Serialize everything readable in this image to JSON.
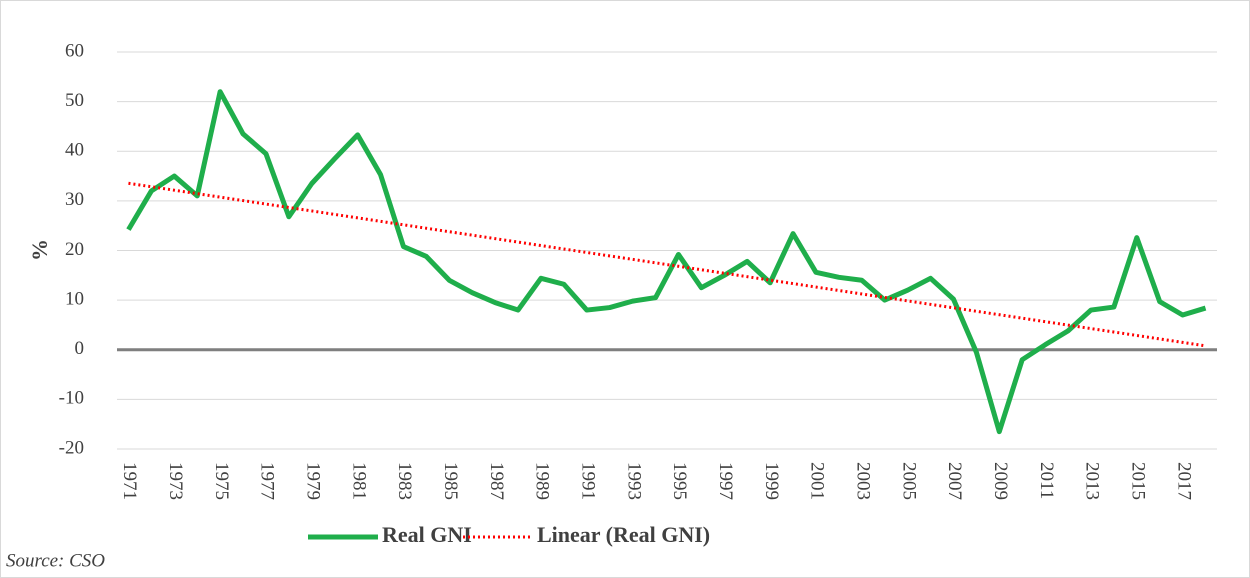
{
  "chart_data": {
    "type": "line",
    "y_label": "%",
    "source": "Source: CSO",
    "categories": [
      "1971",
      null,
      "1973",
      null,
      "1975",
      null,
      "1977",
      null,
      "1979",
      null,
      "1981",
      null,
      "1983",
      null,
      "1985",
      null,
      "1987",
      null,
      "1989",
      null,
      "1991",
      null,
      "1993",
      null,
      "1995",
      null,
      "1997",
      null,
      "1999",
      null,
      "2001",
      null,
      "2003",
      null,
      "2005",
      null,
      "2007",
      null,
      "2009",
      null,
      "2011",
      null,
      "2013",
      null,
      "2015",
      null,
      "2017",
      null
    ],
    "series": [
      {
        "name": "Real GNI",
        "color": "#1fae4b",
        "values": [
          24.2,
          32,
          35,
          31,
          52,
          43.5,
          39.5,
          26.8,
          33.5,
          38.5,
          43.3,
          35.3,
          20.8,
          18.8,
          14,
          11.5,
          9.5,
          8,
          14.4,
          13.2,
          8,
          8.5,
          9.8,
          10.5,
          19.2,
          12.5,
          15,
          17.8,
          13.5,
          23.4,
          15.6,
          14.6,
          14,
          10,
          12,
          14.4,
          10.2,
          -0.5,
          -16.5,
          -2,
          1,
          3.8,
          8,
          8.6,
          22.6,
          9.7,
          7,
          8.4
        ]
      },
      {
        "name": "Linear (Real GNI)",
        "color": "#ff0000",
        "type": "linear-trend"
      }
    ],
    "ylim": [
      -20,
      60
    ],
    "yticks": [
      -20,
      -10,
      0,
      10,
      20,
      30,
      40,
      50,
      60
    ],
    "grid": true
  }
}
